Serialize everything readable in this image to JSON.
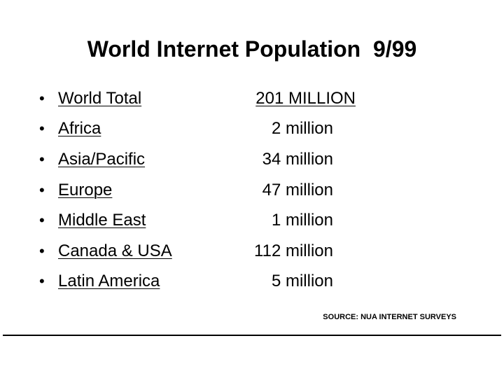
{
  "slide": {
    "title": "World Internet Population  9/99",
    "bullet_glyph": "•",
    "rows": [
      {
        "region": "World Total",
        "value": "201 MILLION"
      },
      {
        "region": "Africa",
        "value": "2 million"
      },
      {
        "region": "Asia/Pacific",
        "value": "34 million"
      },
      {
        "region": "Europe",
        "value": "47 million"
      },
      {
        "region": "Middle East",
        "value": "1 million"
      },
      {
        "region": "Canada & USA",
        "value": "112 million"
      },
      {
        "region": "Latin America",
        "value": "5 million"
      }
    ],
    "source": "SOURCE: NUA INTERNET SURVEYS"
  }
}
